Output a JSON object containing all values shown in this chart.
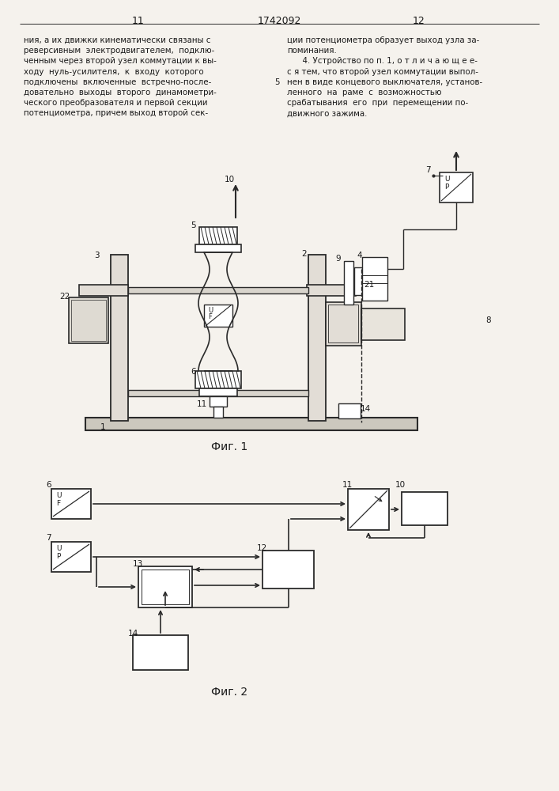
{
  "page_width": 7.07,
  "page_height": 10.0,
  "bg_color": "#f5f2ed",
  "text_color": "#1a1a1a",
  "line_color": "#2a2a2a",
  "header": {
    "left_num": "11",
    "center_num": "1742092",
    "right_num": "12"
  },
  "left_text": [
    "ния, а их движки кинематически связаны с",
    "реверсивным  электродвигателем,  подклю-",
    "ченным через второй узел коммутации к вы-",
    "ходу  нуль-усилителя,  к  входу  которого",
    "подключены  включенные  встречно-после-",
    "довательно  выходы  второго  динамометри-",
    "ческого преобразователя и первой секции",
    "потенциометра, причем выход второй сек-"
  ],
  "right_text": [
    "ции потенциометра образует выход узла за-",
    "поминания.",
    "      4. Устройство по п. 1, о т л и ч а ю щ е е-",
    "с я тем, что второй узел коммутации выпол-",
    "нен в виде концевого выключателя, установ-",
    "ленного  на  раме  с  возможностью",
    "срабатывания  его  при  перемещении по-",
    "движного зажима."
  ],
  "fig1_caption": "Фиг. 1",
  "fig2_caption": "Фиг. 2"
}
